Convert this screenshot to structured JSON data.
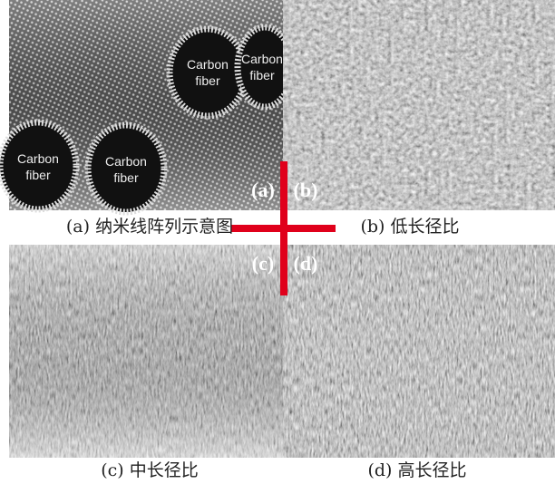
{
  "panels": [
    {
      "tag": "(a)",
      "caption": "(a) 纳米线阵列示意图",
      "fibers": [
        [
          "Carbon",
          "fiber"
        ],
        [
          "Carbon",
          "fiber"
        ],
        [
          "Carbon",
          "fiber"
        ],
        [
          "Carbon",
          "fiber"
        ]
      ]
    },
    {
      "tag": "(b)",
      "caption": "(b) 低长径比"
    },
    {
      "tag": "(c)",
      "caption": "(c) 中长径比"
    },
    {
      "tag": "(d)",
      "caption": "(d) 高长径比"
    }
  ]
}
